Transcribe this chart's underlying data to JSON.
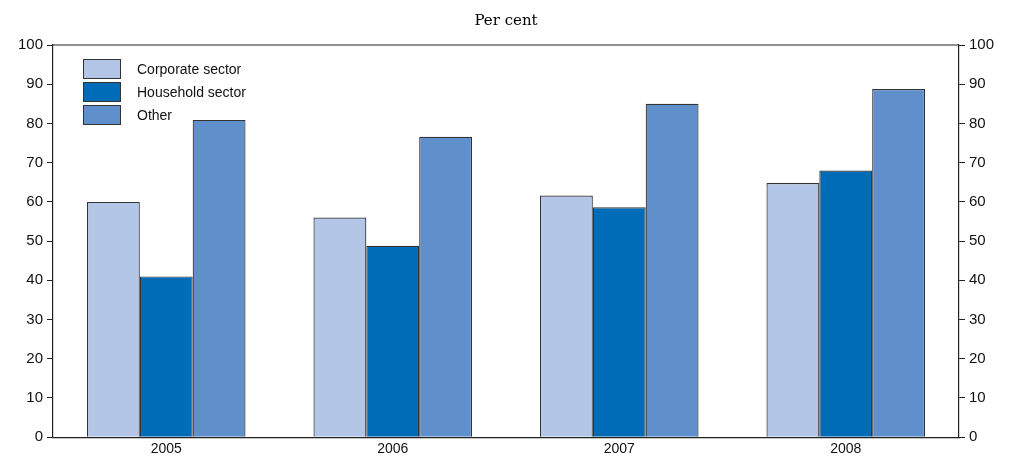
{
  "chart_data": {
    "type": "bar",
    "subtitle": "Per cent",
    "categories": [
      "2005",
      "2006",
      "2007",
      "2008"
    ],
    "series": [
      {
        "name": "Corporate sector",
        "color": "#b3c6e7",
        "values": [
          60,
          56,
          61.6,
          64.8
        ]
      },
      {
        "name": "Household sector",
        "color": "#006bb6",
        "values": [
          41,
          48.8,
          58.6,
          68
        ]
      },
      {
        "name": "Other",
        "color": "#5f90cb",
        "values": [
          80.9,
          76.6,
          85,
          88.8
        ]
      }
    ],
    "ylim": [
      0,
      100
    ],
    "yticks": [
      0,
      10,
      20,
      30,
      40,
      50,
      60,
      70,
      80,
      90,
      100
    ],
    "y2lim": [
      0,
      100
    ],
    "y2ticks": [
      0,
      10,
      20,
      30,
      40,
      50,
      60,
      70,
      80,
      90,
      100
    ],
    "legend": "top left"
  }
}
